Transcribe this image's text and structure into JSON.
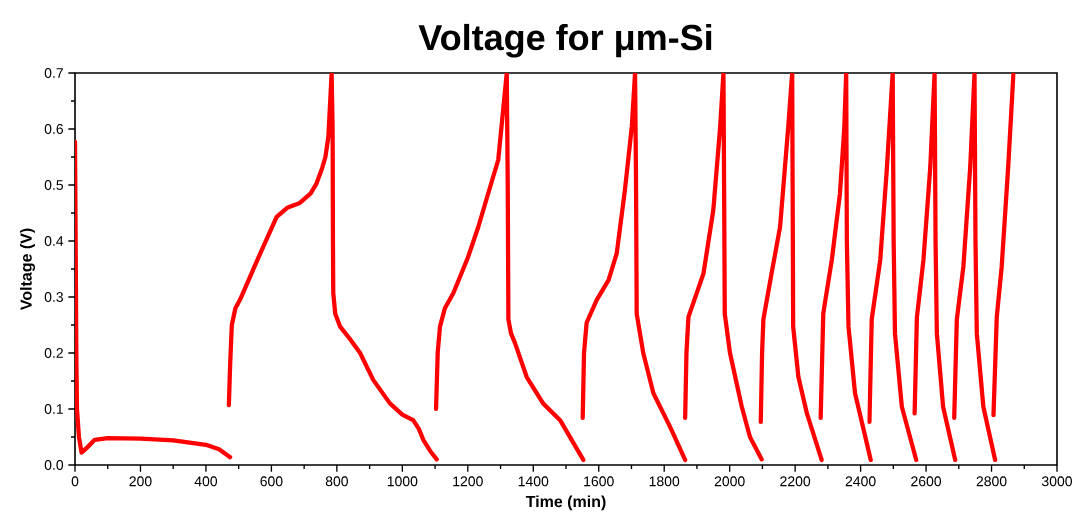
{
  "chart_data": {
    "type": "line",
    "title": "Voltage for μm-Si",
    "xlabel": "Time (min)",
    "ylabel": "Voltage (V)",
    "xlim": [
      0,
      3000
    ],
    "ylim": [
      0,
      0.7
    ],
    "xticks": [
      0,
      200,
      400,
      600,
      800,
      1000,
      1200,
      1400,
      1600,
      1800,
      2000,
      2200,
      2400,
      2600,
      2800,
      3000
    ],
    "yticks": [
      {
        "value": 0,
        "label": "0.0"
      },
      0.1,
      0.2,
      0.3,
      0.4,
      0.5,
      0.6,
      0.7
    ],
    "series": [
      {
        "color": "#ff0000",
        "x": [
          0,
          2,
          4,
          6,
          12,
          20,
          35,
          60,
          100,
          200,
          300,
          400,
          440,
          474
        ],
        "values": [
          0.577,
          0.4,
          0.2,
          0.1,
          0.05,
          0.022,
          0.03,
          0.045,
          0.048,
          0.047,
          0.044,
          0.036,
          0.028,
          0.014
        ]
      },
      {
        "color": "#ff0000",
        "x": [
          470,
          474,
          479,
          490,
          504,
          560,
          616,
          650,
          687,
          720,
          738,
          755,
          765,
          774,
          784,
          787,
          788,
          789,
          795,
          810,
          840,
          871,
          911,
          962,
          1000,
          1033,
          1050,
          1064,
          1085,
          1105
        ],
        "values": [
          0.107,
          0.18,
          0.25,
          0.28,
          0.295,
          0.37,
          0.443,
          0.46,
          0.468,
          0.485,
          0.503,
          0.53,
          0.55,
          0.586,
          0.7,
          0.6,
          0.4,
          0.307,
          0.27,
          0.247,
          0.225,
          0.2,
          0.152,
          0.11,
          0.09,
          0.08,
          0.065,
          0.045,
          0.025,
          0.01
        ]
      },
      {
        "color": "#ff0000",
        "x": [
          1103,
          1108,
          1115,
          1130,
          1156,
          1200,
          1232,
          1270,
          1293,
          1308,
          1319,
          1322,
          1324,
          1332,
          1344,
          1380,
          1430,
          1482,
          1523,
          1553
        ],
        "values": [
          0.1,
          0.2,
          0.247,
          0.28,
          0.307,
          0.37,
          0.425,
          0.5,
          0.545,
          0.634,
          0.7,
          0.5,
          0.26,
          0.235,
          0.218,
          0.157,
          0.11,
          0.08,
          0.039,
          0.009
        ]
      },
      {
        "color": "#ff0000",
        "x": [
          1551,
          1555,
          1563,
          1594,
          1630,
          1655,
          1680,
          1701,
          1711,
          1714,
          1716,
          1736,
          1767,
          1818,
          1864
        ],
        "values": [
          0.084,
          0.2,
          0.254,
          0.295,
          0.33,
          0.378,
          0.491,
          0.604,
          0.7,
          0.5,
          0.27,
          0.2,
          0.128,
          0.068,
          0.009
        ]
      },
      {
        "color": "#ff0000",
        "x": [
          1864,
          1868,
          1874,
          1920,
          1950,
          1971,
          1981,
          1983,
          1985,
          2001,
          2037,
          2062,
          2098
        ],
        "values": [
          0.084,
          0.2,
          0.264,
          0.342,
          0.455,
          0.604,
          0.7,
          0.5,
          0.27,
          0.2,
          0.104,
          0.05,
          0.01
        ]
      },
      {
        "color": "#ff0000",
        "x": [
          2095,
          2099,
          2103,
          2128,
          2154,
          2179,
          2191,
          2193,
          2194,
          2210,
          2236,
          2281
        ],
        "values": [
          0.077,
          0.2,
          0.26,
          0.342,
          0.425,
          0.604,
          0.7,
          0.4,
          0.247,
          0.157,
          0.092,
          0.009
        ]
      },
      {
        "color": "#ff0000",
        "x": [
          2278,
          2286,
          2312,
          2337,
          2350,
          2356,
          2358,
          2363,
          2383,
          2431
        ],
        "values": [
          0.084,
          0.271,
          0.366,
          0.485,
          0.6,
          0.7,
          0.4,
          0.247,
          0.128,
          0.009
        ]
      },
      {
        "color": "#ff0000",
        "x": [
          2427,
          2434,
          2460,
          2480,
          2498,
          2501,
          2505,
          2526,
          2570
        ],
        "values": [
          0.077,
          0.26,
          0.366,
          0.527,
          0.7,
          0.4,
          0.235,
          0.104,
          0.009
        ]
      },
      {
        "color": "#ff0000",
        "x": [
          2565,
          2572,
          2592,
          2613,
          2626,
          2629,
          2633,
          2652,
          2689
        ],
        "values": [
          0.092,
          0.264,
          0.366,
          0.533,
          0.7,
          0.4,
          0.235,
          0.104,
          0.009
        ]
      },
      {
        "color": "#ff0000",
        "x": [
          2686,
          2694,
          2714,
          2735,
          2748,
          2751,
          2755,
          2775,
          2811
        ],
        "values": [
          0.084,
          0.26,
          0.354,
          0.533,
          0.7,
          0.4,
          0.235,
          0.104,
          0.009
        ]
      },
      {
        "color": "#ff0000",
        "x": [
          2806,
          2816,
          2831,
          2851,
          2867
        ],
        "values": [
          0.089,
          0.264,
          0.354,
          0.533,
          0.7
        ]
      }
    ]
  }
}
